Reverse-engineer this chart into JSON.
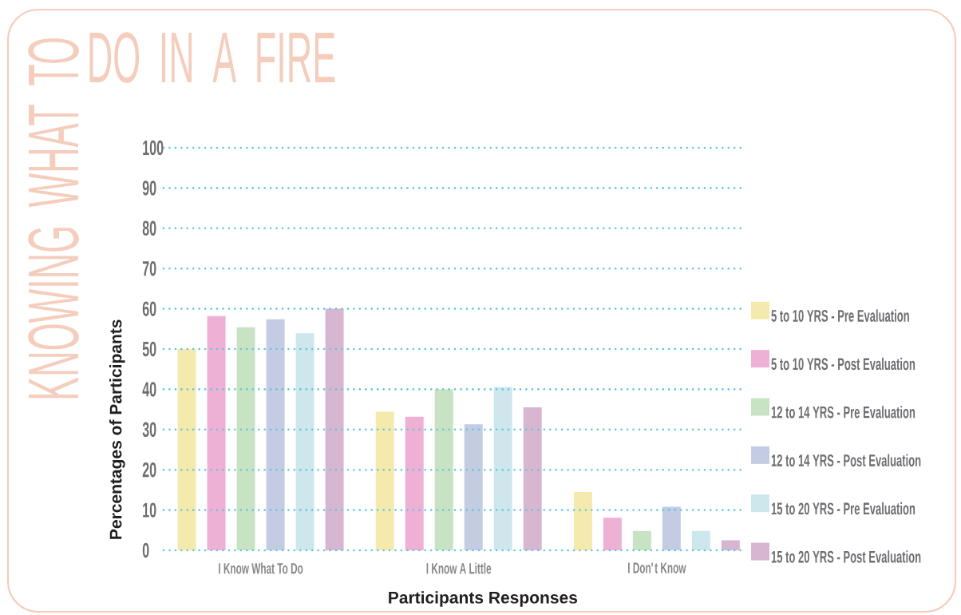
{
  "chart_data": {
    "type": "bar",
    "title": "KNOWING WHAT TO",
    "subtitle": "DO IN A FIRE",
    "xlabel": "Participants Responses",
    "ylabel": "Percentages of Participants",
    "categories": [
      "I Know What To Do",
      "I Know A Little",
      "I Don't Know"
    ],
    "series": [
      {
        "name": "5 to 10 YRS - Pre Evaluation",
        "color": "#f4eaae",
        "values": [
          50,
          34.4,
          14.5
        ]
      },
      {
        "name": "5 to 10 YRS - Post Evaluation",
        "color": "#efb0d6",
        "values": [
          58.2,
          33.2,
          8.1
        ]
      },
      {
        "name": "12 to 14 YRS - Pre Evaluation",
        "color": "#c8e2c4",
        "values": [
          55.4,
          40.0,
          4.8
        ]
      },
      {
        "name": "12 to 14 YRS - Post Evaluation",
        "color": "#c3cce2",
        "values": [
          57.4,
          31.3,
          10.8
        ]
      },
      {
        "name": "15 to 20 YRS - Pre Evaluation",
        "color": "#cde7ed",
        "values": [
          53.9,
          40.6,
          4.8
        ]
      },
      {
        "name": "15 to 20 YRS - Post Evaluation",
        "color": "#d7b6d1",
        "values": [
          60.0,
          35.5,
          2.5
        ]
      }
    ],
    "ylim": [
      0,
      100
    ],
    "yticks": [
      0,
      10,
      20,
      30,
      40,
      50,
      60,
      70,
      80,
      90,
      100
    ],
    "grid": "y",
    "legend": "right"
  }
}
